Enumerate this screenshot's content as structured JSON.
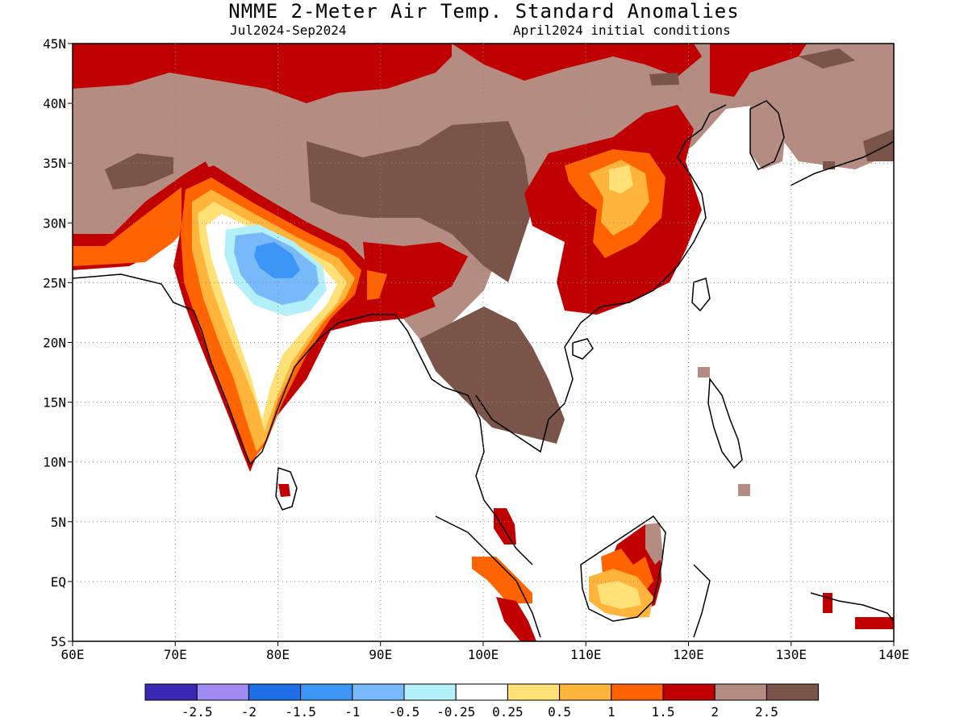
{
  "title": "NMME 2-Meter Air Temp. Standard Anomalies",
  "subtitle_left": "Jul2024-Sep2024",
  "subtitle_right": "April2024 initial conditions",
  "map": {
    "lon_range": [
      60,
      140
    ],
    "lat_range": [
      -5,
      45
    ],
    "lon_ticks": [
      {
        "value": 60,
        "label": "60E"
      },
      {
        "value": 70,
        "label": "70E"
      },
      {
        "value": 80,
        "label": "80E"
      },
      {
        "value": 90,
        "label": "90E"
      },
      {
        "value": 100,
        "label": "100E"
      },
      {
        "value": 110,
        "label": "110E"
      },
      {
        "value": 120,
        "label": "120E"
      },
      {
        "value": 130,
        "label": "130E"
      },
      {
        "value": 140,
        "label": "140E"
      }
    ],
    "lat_ticks": [
      {
        "value": 45,
        "label": "45N"
      },
      {
        "value": 40,
        "label": "40N"
      },
      {
        "value": 35,
        "label": "35N"
      },
      {
        "value": 30,
        "label": "30N"
      },
      {
        "value": 25,
        "label": "25N"
      },
      {
        "value": 20,
        "label": "20N"
      },
      {
        "value": 15,
        "label": "15N"
      },
      {
        "value": 10,
        "label": "10N"
      },
      {
        "value": 5,
        "label": "5N"
      },
      {
        "value": 0,
        "label": "EQ"
      },
      {
        "value": -5,
        "label": "5S"
      }
    ]
  },
  "colorbar": {
    "colors": [
      "#3c28b4",
      "#9e8cf2",
      "#1e6ee6",
      "#3c96f5",
      "#78b9fa",
      "#b4f0fa",
      "#ffffff",
      "#ffe178",
      "#ffb43c",
      "#ff6400",
      "#c00000",
      "#b48c82",
      "#7a5448"
    ],
    "labels": [
      "-2.5",
      "-2",
      "-1.5",
      "-1",
      "-0.5",
      "-0.25",
      "0.25",
      "0.5",
      "1",
      "1.5",
      "2",
      "2.5"
    ]
  }
}
